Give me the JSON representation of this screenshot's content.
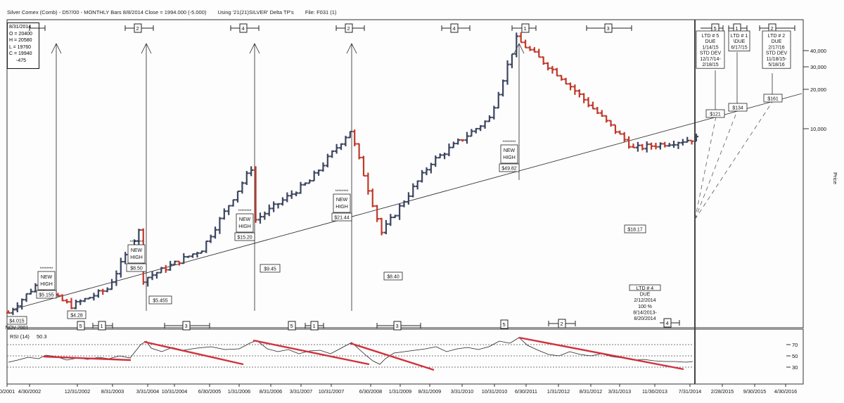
{
  "header": {
    "symbol": "Silver Comex (Comb) - D57/00 - MONTHLY Bars 8/8/2014 Close = 1994.000 (-5.000)",
    "using": "Using '21(21)SILVER' Delta TP's",
    "file": "File: F031 (1)"
  },
  "ohlc": {
    "date": "8/31/2014",
    "open": "O = 20400",
    "high": "H = 20580",
    "low": "L = 19760",
    "close": "C = 19940",
    "change": "-475"
  },
  "chart_data": {
    "type": "bar",
    "price_axis": {
      "label": "Price",
      "ticks": [
        "40,000",
        "30,000",
        "20,000",
        "10,000"
      ]
    },
    "x_ticks": [
      "0/2001",
      "4/30/2002",
      "12/31/2002",
      "8/31/2003",
      "3/31/2004",
      "10/31/2004",
      "6/30/2005",
      "1/31/2006",
      "8/31/2006",
      "3/31/2007",
      "10/31/2007",
      "6/30/2008",
      "1/31/2009",
      "8/31/2009",
      "3/31/2010",
      "10/31/2010",
      "6/30/2011",
      "1/31/2012",
      "8/31/2012",
      "3/31/2013",
      "11/30/2013",
      "7/31/2014",
      "2/28/2015",
      "9/30/2015",
      "4/30/2016"
    ],
    "price_path": [
      {
        "date": "2001-11",
        "close": 4.015
      },
      {
        "date": "2002-05",
        "close": 5.155
      },
      {
        "date": "2003-01",
        "close": 4.28
      },
      {
        "date": "2003-09",
        "close": 5.0
      },
      {
        "date": "2004-04",
        "close": 8.5
      },
      {
        "date": "2004-05",
        "close": 5.455
      },
      {
        "date": "2005-06",
        "close": 7.2
      },
      {
        "date": "2006-05",
        "close": 15.2
      },
      {
        "date": "2006-06",
        "close": 9.45
      },
      {
        "date": "2007-06",
        "close": 13.5
      },
      {
        "date": "2008-03",
        "close": 21.44
      },
      {
        "date": "2008-10",
        "close": 8.4
      },
      {
        "date": "2009-09",
        "close": 16.0
      },
      {
        "date": "2010-10",
        "close": 24.0
      },
      {
        "date": "2011-04",
        "close": 49.82
      },
      {
        "date": "2012-02",
        "close": 35.0
      },
      {
        "date": "2013-06",
        "close": 18.17
      },
      {
        "date": "2014-08",
        "close": 19.94
      }
    ],
    "annotations": {
      "new_highs": [
        {
          "stars": "********",
          "line1": "NEW",
          "line2": "HIGH",
          "price": "$5.155"
        },
        {
          "stars": "********",
          "line1": "NEW",
          "line2": "HIGH",
          "price": "$8.50"
        },
        {
          "stars": "********",
          "line1": "NEW",
          "line2": "HIGH",
          "price": "$15.20"
        },
        {
          "stars": "********",
          "line1": "NEW",
          "line2": "HIGH",
          "price": "$21.44"
        },
        {
          "stars": "********",
          "line1": "NEW",
          "line2": "HIGH",
          "price": "$49.82"
        }
      ],
      "lows": [
        {
          "price": "$4.015",
          "date": "NOV 2001"
        },
        {
          "price": "$4.28"
        },
        {
          "price": "$5.455"
        },
        {
          "price": "$9.45"
        },
        {
          "price": "$8.40"
        },
        {
          "price": "$18.17"
        }
      ],
      "targets": [
        "$121",
        "$134",
        "$161"
      ],
      "ltd_boxes": [
        {
          "lines": [
            "LTD # 5",
            "DUE",
            "1/14/15",
            "STD DEV",
            "12/17/14-",
            "2/18/15"
          ]
        },
        {
          "lines": [
            "LTD # 1",
            "\\DUE",
            "6/17/15"
          ]
        },
        {
          "lines": [
            "LTD # 2",
            "DUE",
            "2/17/16",
            "STD DEV",
            "11/18/15-",
            "5/18/16"
          ]
        },
        {
          "lines": [
            "LTD # 4",
            "DUE",
            "2/12/2014",
            "100 %",
            "8/14/2013-",
            "8/20/2014"
          ]
        }
      ],
      "top_cycle_labels": [
        "2",
        "4",
        "2",
        "4",
        "1",
        "3",
        "5",
        "1",
        "2"
      ],
      "bottom_cycle_labels": [
        "5",
        "1",
        "3",
        "5",
        "1",
        "3",
        "5",
        "2",
        "4"
      ]
    },
    "rsi": {
      "label": "RSI (14)",
      "value": "50.3",
      "levels": [
        "70",
        "50",
        "30"
      ]
    }
  }
}
